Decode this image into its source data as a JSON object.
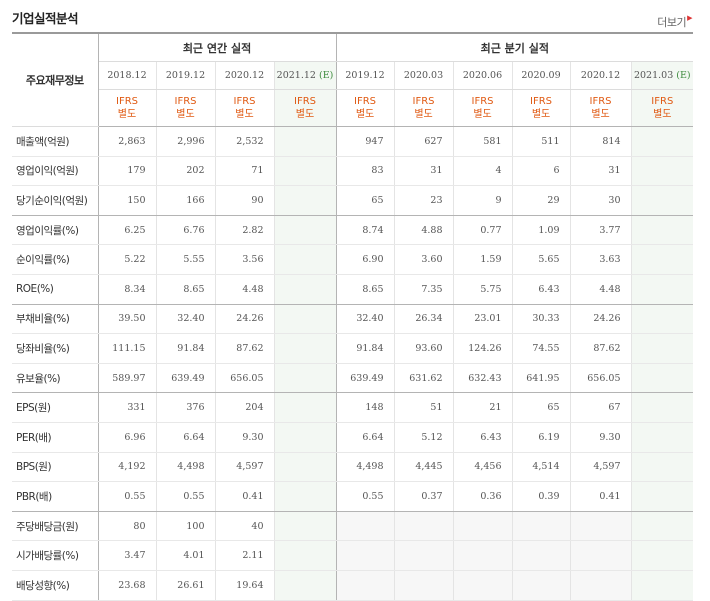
{
  "title": "기업실적분석",
  "more_label": "더보기",
  "corner_label": "주요재무정보",
  "group_headers": {
    "annual": "최근 연간 실적",
    "quarterly": "최근 분기 실적"
  },
  "periods_annual": [
    "2018.12",
    "2019.12",
    "2020.12",
    "2021.12"
  ],
  "periods_quarterly": [
    "2019.12",
    "2020.03",
    "2020.06",
    "2020.09",
    "2020.12",
    "2021.03"
  ],
  "estimate_suffix": "(E)",
  "ifrs_label": "IFRS",
  "ifrs_sub": "별도",
  "rows": [
    {
      "label": "매출액(억원)",
      "annual": [
        "2,863",
        "2,996",
        "2,532",
        ""
      ],
      "quarterly": [
        "947",
        "627",
        "581",
        "511",
        "814",
        ""
      ]
    },
    {
      "label": "영업이익(억원)",
      "annual": [
        "179",
        "202",
        "71",
        ""
      ],
      "quarterly": [
        "83",
        "31",
        "4",
        "6",
        "31",
        ""
      ]
    },
    {
      "label": "당기순이익(억원)",
      "annual": [
        "150",
        "166",
        "90",
        ""
      ],
      "quarterly": [
        "65",
        "23",
        "9",
        "29",
        "30",
        ""
      ]
    },
    {
      "label": "영업이익률(%)",
      "annual": [
        "6.25",
        "6.76",
        "2.82",
        ""
      ],
      "quarterly": [
        "8.74",
        "4.88",
        "0.77",
        "1.09",
        "3.77",
        ""
      ]
    },
    {
      "label": "순이익률(%)",
      "annual": [
        "5.22",
        "5.55",
        "3.56",
        ""
      ],
      "quarterly": [
        "6.90",
        "3.60",
        "1.59",
        "5.65",
        "3.63",
        ""
      ]
    },
    {
      "label": "ROE(%)",
      "annual": [
        "8.34",
        "8.65",
        "4.48",
        ""
      ],
      "quarterly": [
        "8.65",
        "7.35",
        "5.75",
        "6.43",
        "4.48",
        ""
      ]
    },
    {
      "label": "부채비율(%)",
      "annual": [
        "39.50",
        "32.40",
        "24.26",
        ""
      ],
      "quarterly": [
        "32.40",
        "26.34",
        "23.01",
        "30.33",
        "24.26",
        ""
      ]
    },
    {
      "label": "당좌비율(%)",
      "annual": [
        "111.15",
        "91.84",
        "87.62",
        ""
      ],
      "quarterly": [
        "91.84",
        "93.60",
        "124.26",
        "74.55",
        "87.62",
        ""
      ]
    },
    {
      "label": "유보율(%)",
      "annual": [
        "589.97",
        "639.49",
        "656.05",
        ""
      ],
      "quarterly": [
        "639.49",
        "631.62",
        "632.43",
        "641.95",
        "656.05",
        ""
      ]
    },
    {
      "label": "EPS(원)",
      "annual": [
        "331",
        "376",
        "204",
        ""
      ],
      "quarterly": [
        "148",
        "51",
        "21",
        "65",
        "67",
        ""
      ]
    },
    {
      "label": "PER(배)",
      "annual": [
        "6.96",
        "6.64",
        "9.30",
        ""
      ],
      "quarterly": [
        "6.64",
        "5.12",
        "6.43",
        "6.19",
        "9.30",
        ""
      ]
    },
    {
      "label": "BPS(원)",
      "annual": [
        "4,192",
        "4,498",
        "4,597",
        ""
      ],
      "quarterly": [
        "4,498",
        "4,445",
        "4,456",
        "4,514",
        "4,597",
        ""
      ]
    },
    {
      "label": "PBR(배)",
      "annual": [
        "0.55",
        "0.55",
        "0.41",
        ""
      ],
      "quarterly": [
        "0.55",
        "0.37",
        "0.36",
        "0.39",
        "0.41",
        ""
      ]
    },
    {
      "label": "주당배당금(원)",
      "annual": [
        "80",
        "100",
        "40",
        ""
      ],
      "quarterly": [
        "",
        "",
        "",
        "",
        "",
        ""
      ]
    },
    {
      "label": "시가배당률(%)",
      "annual": [
        "3.47",
        "4.01",
        "2.11",
        ""
      ],
      "quarterly": [
        "",
        "",
        "",
        "",
        "",
        ""
      ]
    },
    {
      "label": "배당성향(%)",
      "annual": [
        "23.68",
        "26.61",
        "19.64",
        ""
      ],
      "quarterly": [
        "",
        "",
        "",
        "",
        "",
        ""
      ]
    }
  ]
}
